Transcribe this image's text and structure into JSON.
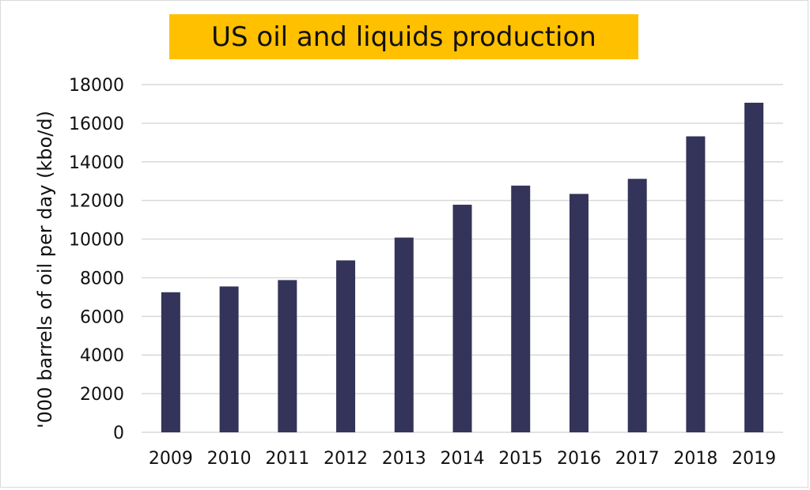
{
  "chart_data": {
    "type": "bar",
    "title": "US oil and liquids production",
    "xlabel": "",
    "ylabel": "'000 barrels of oil per day (kbo/d)",
    "categories": [
      "2009",
      "2010",
      "2011",
      "2012",
      "2013",
      "2014",
      "2015",
      "2016",
      "2017",
      "2018",
      "2019"
    ],
    "values": [
      7250,
      7550,
      7880,
      8900,
      10080,
      11780,
      12770,
      12340,
      13120,
      15320,
      17060
    ],
    "ylim": [
      0,
      18000
    ],
    "yticks": [
      0,
      2000,
      4000,
      6000,
      8000,
      10000,
      12000,
      14000,
      16000,
      18000
    ],
    "grid": true,
    "legend": "none"
  },
  "colors": {
    "bar": "#34345a",
    "title_bg": "#ffc000",
    "grid": "#d9d9d9"
  }
}
